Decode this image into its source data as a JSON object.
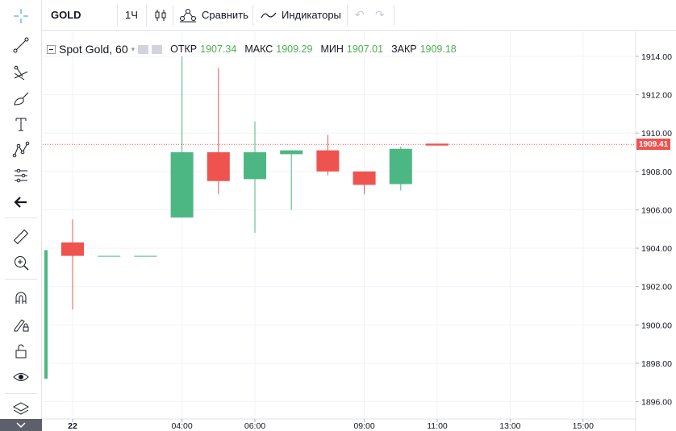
{
  "toolbar": {
    "symbol": "GOLD",
    "interval": "1Ч",
    "compare_label": "Сравнить",
    "indicators_label": "Индикаторы",
    "icons": [
      "candles-icon",
      "compare-icon",
      "indicators-icon",
      "undo-icon",
      "redo-icon"
    ]
  },
  "left_tools": [
    "crosshair-icon",
    "trendline-icon",
    "fib-icon",
    "brush-icon",
    "text-icon",
    "pattern-icon",
    "measure-icon",
    "back-arrow-icon",
    "ruler-icon",
    "zoom-in-icon",
    "magnet-icon",
    "lock-pencil-icon",
    "lock-icon",
    "eye-icon",
    "layers-icon"
  ],
  "legend": {
    "title": "Spot Gold, 60",
    "open_label": "ОТКР",
    "open": "1907.34",
    "high_label": "МАКС",
    "high": "1909.29",
    "low_label": "МИН",
    "low": "1907.01",
    "close_label": "ЗАКР",
    "close": "1909.18",
    "value_color": "#4caf50"
  },
  "last_price_label": "1909.41",
  "colors": {
    "up": "#4cb782",
    "down": "#ef5350",
    "grid": "#f0f3fa",
    "axis": "#e0e3eb"
  },
  "chart_data": {
    "type": "candlestick",
    "y_ticks": [
      "1914.00",
      "1912.00",
      "1910.00",
      "1908.00",
      "1906.00",
      "1904.00",
      "1902.00",
      "1900.00",
      "1898.00",
      "1896.00"
    ],
    "ylim": [
      1895.1,
      1915.3
    ],
    "x_ticks": [
      "22",
      "04:00",
      "06:00",
      "09:00",
      "11:00",
      "13:00",
      "15:00"
    ],
    "x_tick_slots": [
      0,
      3,
      5,
      8,
      10,
      12,
      14
    ],
    "last_price": 1909.41,
    "candles": [
      {
        "slot": -0.8,
        "open": 1897.2,
        "high": 1903.9,
        "low": 1897.2,
        "close": 1903.9
      },
      {
        "slot": 0,
        "open": 1904.3,
        "high": 1905.5,
        "low": 1900.8,
        "close": 1903.6
      },
      {
        "slot": 1,
        "open": 1903.6,
        "high": 1903.6,
        "low": 1903.6,
        "close": 1903.6
      },
      {
        "slot": 2,
        "open": 1903.6,
        "high": 1903.6,
        "low": 1903.6,
        "close": 1903.6
      },
      {
        "slot": 3,
        "open": 1905.6,
        "high": 1914.0,
        "low": 1905.6,
        "close": 1909.0
      },
      {
        "slot": 4,
        "open": 1909.0,
        "high": 1913.4,
        "low": 1906.8,
        "close": 1907.5
      },
      {
        "slot": 5,
        "open": 1907.6,
        "high": 1910.6,
        "low": 1904.8,
        "close": 1909.0
      },
      {
        "slot": 6,
        "open": 1908.9,
        "high": 1909.1,
        "low": 1906.0,
        "close": 1909.1
      },
      {
        "slot": 7,
        "open": 1909.1,
        "high": 1909.9,
        "low": 1907.8,
        "close": 1908.0
      },
      {
        "slot": 8,
        "open": 1908.0,
        "high": 1908.0,
        "low": 1906.8,
        "close": 1907.3
      },
      {
        "slot": 9,
        "open": 1907.34,
        "high": 1909.29,
        "low": 1907.01,
        "close": 1909.18
      },
      {
        "slot": 10,
        "open": 1909.45,
        "high": 1909.45,
        "low": 1909.35,
        "close": 1909.35
      }
    ]
  }
}
